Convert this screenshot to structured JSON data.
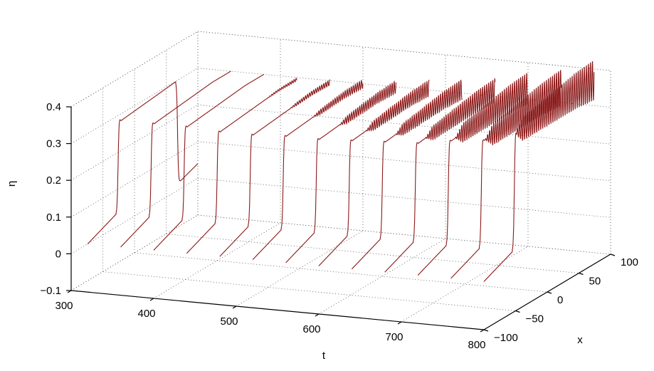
{
  "chart_data": {
    "type": "line3d",
    "xlabel": "t",
    "ylabel": "x",
    "zlabel": "η",
    "t_ticks": [
      800,
      700,
      600,
      500,
      400,
      300
    ],
    "t_tick_labels": [
      "800",
      "700",
      "600",
      "500",
      "400",
      "300"
    ],
    "x_ticks": [
      -100,
      -50,
      0,
      50,
      100
    ],
    "x_tick_labels": [
      "−100",
      "−50",
      "0",
      "50",
      "100"
    ],
    "z_ticks": [
      -0.1,
      0,
      0.1,
      0.2,
      0.3,
      0.4
    ],
    "z_tick_labels": [
      "−0.1",
      "0",
      "0.1",
      "0.2",
      "0.3",
      "0.4"
    ],
    "tlim": [
      300,
      800
    ],
    "xlim": [
      -100,
      100
    ],
    "zlim": [
      -0.1,
      0.4
    ],
    "grid": true,
    "line_color": "#8b1a1a",
    "series": [
      {
        "t": 780,
        "front_x": -74,
        "rise_x": -29,
        "peak": 0.37,
        "osc_amp": 0.05,
        "osc_extent": 100
      },
      {
        "t": 740,
        "front_x": -74,
        "rise_x": -29,
        "peak": 0.34,
        "osc_amp": 0.045,
        "osc_extent": 95
      },
      {
        "t": 700,
        "front_x": -74,
        "rise_x": -29,
        "peak": 0.33,
        "osc_amp": 0.04,
        "osc_extent": 90
      },
      {
        "t": 660,
        "front_x": -74,
        "rise_x": -29,
        "peak": 0.315,
        "osc_amp": 0.03,
        "osc_extent": 85
      },
      {
        "t": 620,
        "front_x": -74,
        "rise_x": -29,
        "peak": 0.31,
        "osc_amp": 0.025,
        "osc_extent": 80
      },
      {
        "t": 580,
        "front_x": -74,
        "rise_x": -29,
        "peak": 0.305,
        "osc_amp": 0.02,
        "osc_extent": 75
      },
      {
        "t": 540,
        "front_x": -74,
        "rise_x": -29,
        "peak": 0.3,
        "osc_amp": 0.015,
        "osc_extent": 65
      },
      {
        "t": 500,
        "front_x": -74,
        "rise_x": -29,
        "peak": 0.3,
        "osc_amp": 0.01,
        "osc_extent": 55
      },
      {
        "t": 460,
        "front_x": -74,
        "rise_x": -29,
        "peak": 0.295,
        "osc_amp": 0.006,
        "osc_extent": 40
      },
      {
        "t": 420,
        "front_x": -74,
        "rise_x": -29,
        "peak": 0.295,
        "osc_amp": 0.003,
        "osc_extent": 25
      },
      {
        "t": 380,
        "front_x": -74,
        "rise_x": -29,
        "peak": 0.3,
        "osc_amp": 0.0,
        "osc_extent": 0
      },
      {
        "t": 340,
        "front_x": -74,
        "rise_x": -29,
        "peak": 0.3,
        "osc_amp": 0.0,
        "osc_extent": 0
      },
      {
        "t": 300,
        "front_x": -74,
        "rise_x": -29,
        "peak": 0.3,
        "osc_amp": 0.0,
        "osc_extent": 0,
        "drop_x": 65,
        "drop_val": 0.02,
        "end_val": 0.04
      }
    ]
  }
}
